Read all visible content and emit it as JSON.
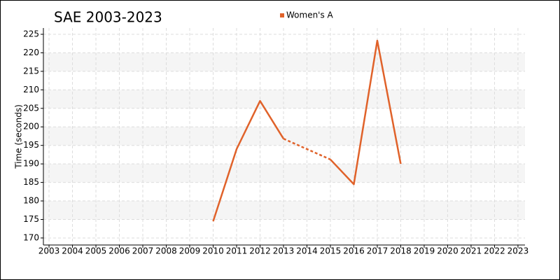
{
  "chart_data": {
    "type": "line",
    "title": "SAE 2003-2023",
    "ylabel": "Time (seconds)",
    "x": [
      2003,
      2004,
      2005,
      2006,
      2007,
      2008,
      2009,
      2010,
      2011,
      2012,
      2013,
      2014,
      2015,
      2016,
      2017,
      2018,
      2019,
      2020,
      2021,
      2022,
      2023
    ],
    "series": [
      {
        "name": "Women's A",
        "color": "#e0622a",
        "values": [
          null,
          null,
          null,
          null,
          null,
          null,
          null,
          174.5,
          194,
          207,
          196.8,
          null,
          191.2,
          184.5,
          223.3,
          190,
          null,
          null,
          null,
          null,
          null
        ]
      }
    ],
    "xlim": [
      2002.76,
      2023.3
    ],
    "xticks": [
      2003,
      2004,
      2005,
      2006,
      2007,
      2008,
      2009,
      2010,
      2011,
      2012,
      2013,
      2014,
      2015,
      2016,
      2017,
      2018,
      2019,
      2020,
      2021,
      2022,
      2023
    ],
    "ylim": [
      168.1,
      226.7
    ],
    "yticks": [
      170,
      175,
      180,
      185,
      190,
      195,
      200,
      205,
      210,
      215,
      220,
      225
    ],
    "grid": true,
    "legend": "top"
  }
}
